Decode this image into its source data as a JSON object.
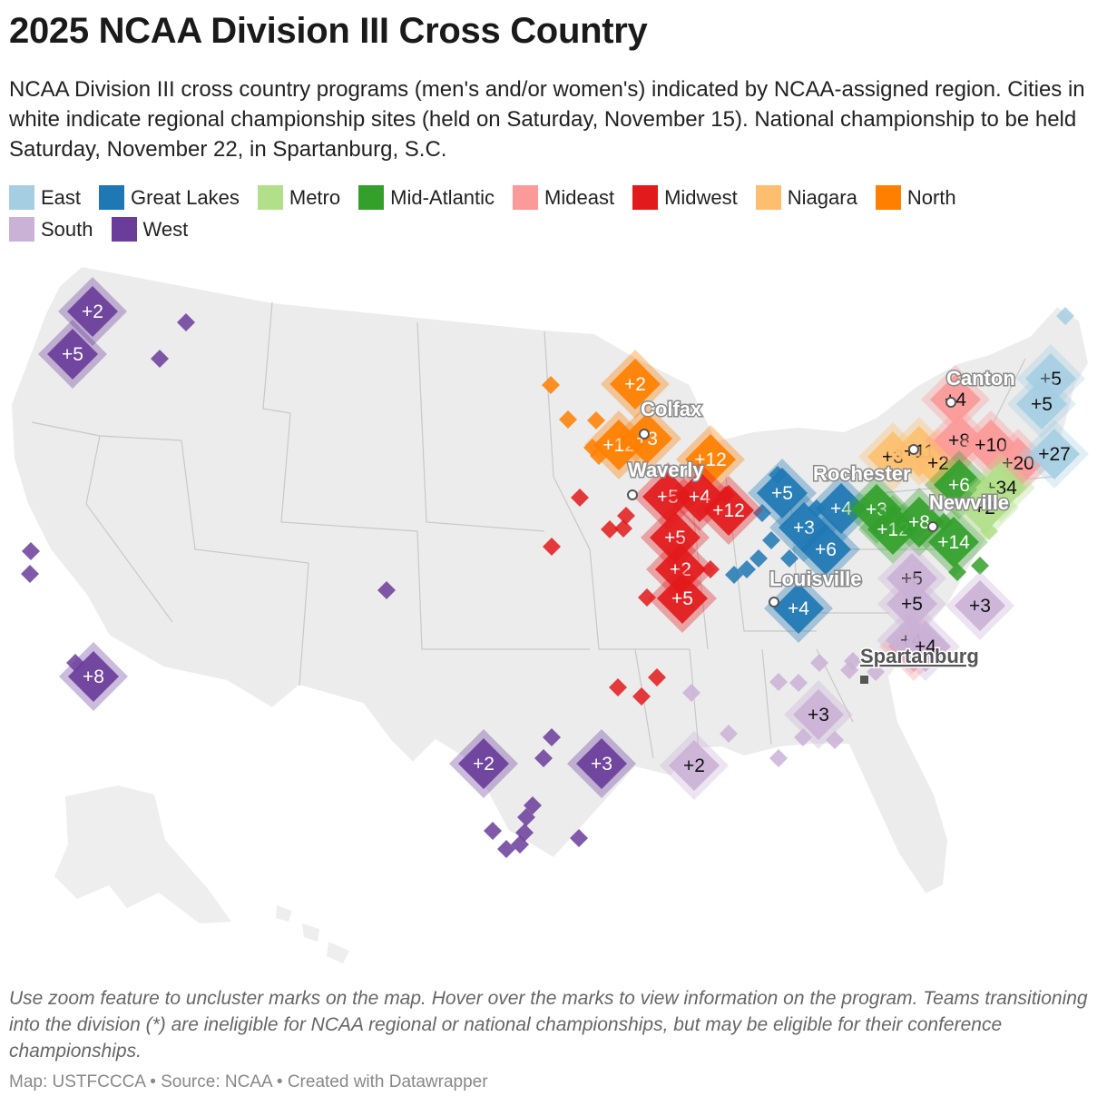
{
  "header": {
    "title": "2025 NCAA Division III Cross Country",
    "subtitle": "NCAA Division III cross country programs (men's and/or women's) indicated by NCAA-assigned region. Cities in white indicate regional championship sites (held on Saturday, November 15). National championship to be held Saturday, November 22, in Spartanburg, S.C."
  },
  "legend": [
    {
      "label": "East",
      "color": "#a6cee3"
    },
    {
      "label": "Great Lakes",
      "color": "#1f78b4"
    },
    {
      "label": "Metro",
      "color": "#b2df8a"
    },
    {
      "label": "Mid-Atlantic",
      "color": "#33a02c"
    },
    {
      "label": "Mideast",
      "color": "#fb9a99"
    },
    {
      "label": "Midwest",
      "color": "#e31a1c"
    },
    {
      "label": "Niagara",
      "color": "#fdbf6f"
    },
    {
      "label": "North",
      "color": "#ff7f00"
    },
    {
      "label": "South",
      "color": "#cab2d6"
    },
    {
      "label": "West",
      "color": "#6a3d9a"
    }
  ],
  "map": {
    "cities": [
      {
        "name": "Colfax",
        "type": "regional"
      },
      {
        "name": "Waverly",
        "type": "regional"
      },
      {
        "name": "Rochester",
        "type": "regional"
      },
      {
        "name": "Canton",
        "type": "regional"
      },
      {
        "name": "Newville",
        "type": "regional"
      },
      {
        "name": "Louisville",
        "type": "regional"
      },
      {
        "name": "Spartanburg",
        "type": "national"
      }
    ],
    "clusters": [
      {
        "region": "West",
        "label": "+2"
      },
      {
        "region": "West",
        "label": "+5"
      },
      {
        "region": "West",
        "label": "+8"
      },
      {
        "region": "West",
        "label": "+2"
      },
      {
        "region": "West",
        "label": "+3"
      },
      {
        "region": "North",
        "label": "+2"
      },
      {
        "region": "North",
        "label": "+12"
      },
      {
        "region": "North",
        "label": "+3"
      },
      {
        "region": "North",
        "label": "+12"
      },
      {
        "region": "Midwest",
        "label": "+5"
      },
      {
        "region": "Midwest",
        "label": "+4"
      },
      {
        "region": "Midwest",
        "label": "+12"
      },
      {
        "region": "Midwest",
        "label": "+5"
      },
      {
        "region": "Midwest",
        "label": "+2"
      },
      {
        "region": "Midwest",
        "label": "+5"
      },
      {
        "region": "Great Lakes",
        "label": "+5"
      },
      {
        "region": "Great Lakes",
        "label": "+3"
      },
      {
        "region": "Great Lakes",
        "label": "+4"
      },
      {
        "region": "Great Lakes",
        "label": "+6"
      },
      {
        "region": "Great Lakes",
        "label": "+4"
      },
      {
        "region": "Niagara",
        "label": "+3"
      },
      {
        "region": "Niagara",
        "label": "+11"
      },
      {
        "region": "Niagara",
        "label": "+2"
      },
      {
        "region": "Mideast",
        "label": "+4"
      },
      {
        "region": "Mideast",
        "label": "+8"
      },
      {
        "region": "Mideast",
        "label": "+10"
      },
      {
        "region": "Mideast",
        "label": "+20"
      },
      {
        "region": "Mideast",
        "label": "+4"
      },
      {
        "region": "East",
        "label": "+5"
      },
      {
        "region": "East",
        "label": "+5"
      },
      {
        "region": "East",
        "label": "+27"
      },
      {
        "region": "Mid-Atlantic",
        "label": "+3"
      },
      {
        "region": "Mid-Atlantic",
        "label": "+12"
      },
      {
        "region": "Mid-Atlantic",
        "label": "+8"
      },
      {
        "region": "Mid-Atlantic",
        "label": "+14"
      },
      {
        "region": "Mid-Atlantic",
        "label": "+6"
      },
      {
        "region": "Metro",
        "label": "+34"
      },
      {
        "region": "Metro",
        "label": "+2"
      },
      {
        "region": "South",
        "label": "+5"
      },
      {
        "region": "South",
        "label": "+5"
      },
      {
        "region": "South",
        "label": "+3"
      },
      {
        "region": "South",
        "label": "+4"
      },
      {
        "region": "South",
        "label": "+4"
      },
      {
        "region": "South",
        "label": "+3"
      },
      {
        "region": "South",
        "label": "+2"
      }
    ]
  },
  "notes": "Use zoom feature to uncluster marks on the map. Hover over the marks to view information on the program. Teams transitioning into the division (*) are ineligible for NCAA regional or national championships, but may be eligible for their conference championships.",
  "footer": "Map: USTFCCCA • Source: NCAA • Created with Datawrapper"
}
